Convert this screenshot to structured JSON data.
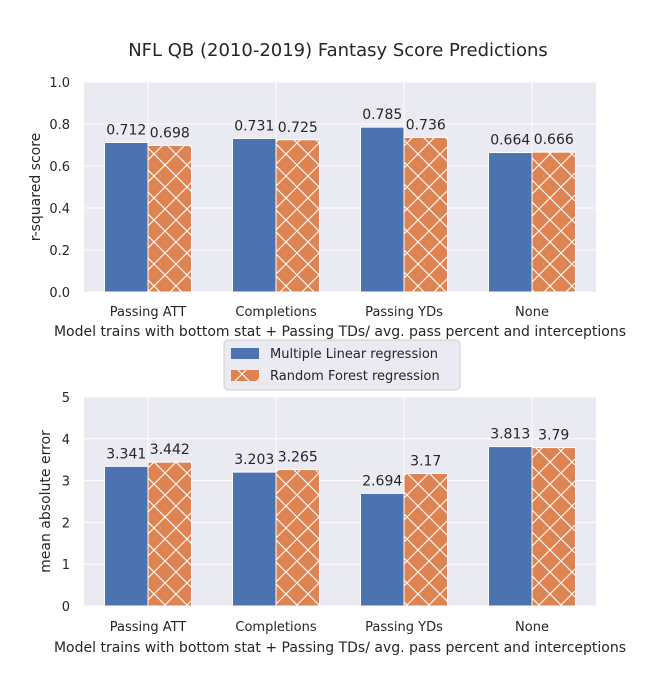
{
  "title": "NFL QB (2010-2019) Fantasy Score Predictions",
  "colors": {
    "series_1": "#4c72b0",
    "series_2": "#dd8452",
    "plot_background": "#eaeaf2",
    "grid": "#ffffff",
    "hatch": "#ffffff"
  },
  "legend": {
    "placement": "between-panels-center",
    "entries": [
      "Multiple Linear regression",
      "Random Forest regression"
    ]
  },
  "chart_data": [
    {
      "type": "bar",
      "title": "NFL QB (2010-2019) Fantasy Score Predictions",
      "categories": [
        "Passing ATT",
        "Completions",
        "Passing YDs",
        "None"
      ],
      "xlabel": "Model trains with bottom stat + Passing TDs/ avg. pass percent and interceptions",
      "ylabel": "r-squared score",
      "ylim": [
        0,
        1.0
      ],
      "yticks": [
        "0.0",
        "0.2",
        "0.4",
        "0.6",
        "0.8",
        "1.0"
      ],
      "grid": true,
      "series": [
        {
          "name": "Multiple Linear regression",
          "values": [
            0.712,
            0.731,
            0.785,
            0.664
          ],
          "labels": [
            "0.712",
            "0.731",
            "0.785",
            "0.664"
          ],
          "hatch": false
        },
        {
          "name": "Random Forest regression",
          "values": [
            0.698,
            0.725,
            0.736,
            0.666
          ],
          "labels": [
            "0.698",
            "0.725",
            "0.736",
            "0.666"
          ],
          "hatch": true
        }
      ]
    },
    {
      "type": "bar",
      "categories": [
        "Passing ATT",
        "Completions",
        "Passing YDs",
        "None"
      ],
      "xlabel": "Model trains with bottom stat + Passing TDs/ avg. pass percent and interceptions",
      "ylabel": "mean absolute error",
      "ylim": [
        0,
        5
      ],
      "yticks": [
        "0",
        "1",
        "2",
        "3",
        "4",
        "5"
      ],
      "grid": true,
      "series": [
        {
          "name": "Multiple Linear regression",
          "values": [
            3.341,
            3.203,
            2.694,
            3.813
          ],
          "labels": [
            "3.341",
            "3.203",
            "2.694",
            "3.813"
          ],
          "hatch": false
        },
        {
          "name": "Random Forest regression",
          "values": [
            3.442,
            3.265,
            3.17,
            3.79
          ],
          "labels": [
            "3.442",
            "3.265",
            "3.17",
            "3.79"
          ],
          "hatch": true
        }
      ]
    }
  ]
}
